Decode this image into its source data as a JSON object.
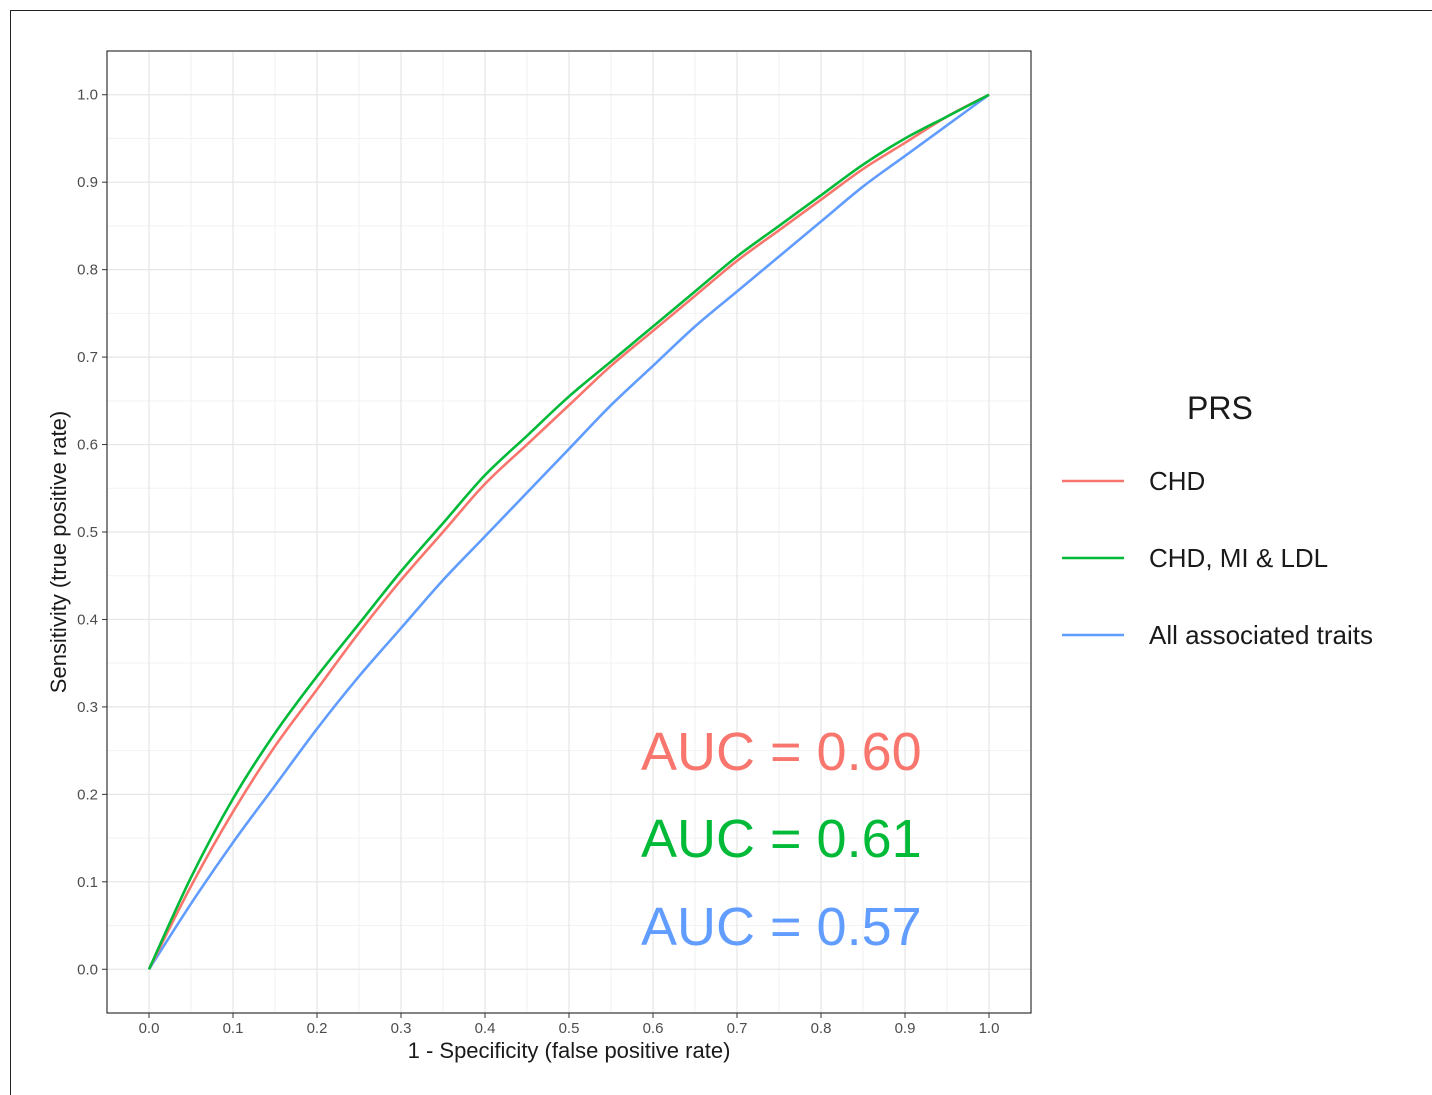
{
  "chart_data": {
    "type": "line",
    "title": "",
    "xlabel": "1 - Specificity (false positive rate)",
    "ylabel": "Sensitivity (true positive rate)",
    "xlim": [
      -0.05,
      1.05
    ],
    "ylim": [
      -0.05,
      1.05
    ],
    "xticks": [
      "0.0",
      "0.1",
      "0.2",
      "0.3",
      "0.4",
      "0.5",
      "0.6",
      "0.7",
      "0.8",
      "0.9",
      "1.0"
    ],
    "yticks": [
      "0.0",
      "0.1",
      "0.2",
      "0.3",
      "0.4",
      "0.5",
      "0.6",
      "0.7",
      "0.8",
      "0.9",
      "1.0"
    ],
    "grid": true,
    "legend": {
      "title": "PRS",
      "position": "right"
    },
    "series": [
      {
        "name": "CHD",
        "color": "#F8766D",
        "x": [
          0.0,
          0.05,
          0.1,
          0.15,
          0.2,
          0.25,
          0.3,
          0.35,
          0.4,
          0.45,
          0.5,
          0.55,
          0.6,
          0.65,
          0.7,
          0.75,
          0.8,
          0.85,
          0.9,
          0.95,
          1.0
        ],
        "y": [
          0.0,
          0.095,
          0.18,
          0.255,
          0.32,
          0.385,
          0.445,
          0.5,
          0.555,
          0.6,
          0.645,
          0.69,
          0.73,
          0.77,
          0.81,
          0.845,
          0.88,
          0.915,
          0.945,
          0.975,
          1.0
        ]
      },
      {
        "name": "CHD, MI & LDL",
        "color": "#00BA38",
        "x": [
          0.0,
          0.05,
          0.1,
          0.15,
          0.2,
          0.25,
          0.3,
          0.35,
          0.4,
          0.45,
          0.5,
          0.55,
          0.6,
          0.65,
          0.7,
          0.75,
          0.8,
          0.85,
          0.9,
          0.95,
          1.0
        ],
        "y": [
          0.0,
          0.105,
          0.195,
          0.27,
          0.335,
          0.395,
          0.455,
          0.51,
          0.565,
          0.61,
          0.655,
          0.695,
          0.735,
          0.775,
          0.815,
          0.85,
          0.885,
          0.92,
          0.95,
          0.975,
          1.0
        ]
      },
      {
        "name": "All associated traits",
        "color": "#619CFF",
        "x": [
          0.0,
          0.05,
          0.1,
          0.15,
          0.2,
          0.25,
          0.3,
          0.35,
          0.4,
          0.45,
          0.5,
          0.55,
          0.6,
          0.65,
          0.7,
          0.75,
          0.8,
          0.85,
          0.9,
          0.95,
          1.0
        ],
        "y": [
          0.0,
          0.075,
          0.145,
          0.21,
          0.275,
          0.335,
          0.39,
          0.445,
          0.495,
          0.545,
          0.595,
          0.645,
          0.69,
          0.735,
          0.775,
          0.815,
          0.855,
          0.895,
          0.93,
          0.965,
          1.0
        ]
      }
    ],
    "annotations": [
      {
        "text": "AUC = 0.60",
        "color": "#F8766D"
      },
      {
        "text": "AUC = 0.61",
        "color": "#00BA38"
      },
      {
        "text": "AUC = 0.57",
        "color": "#619CFF"
      }
    ]
  }
}
